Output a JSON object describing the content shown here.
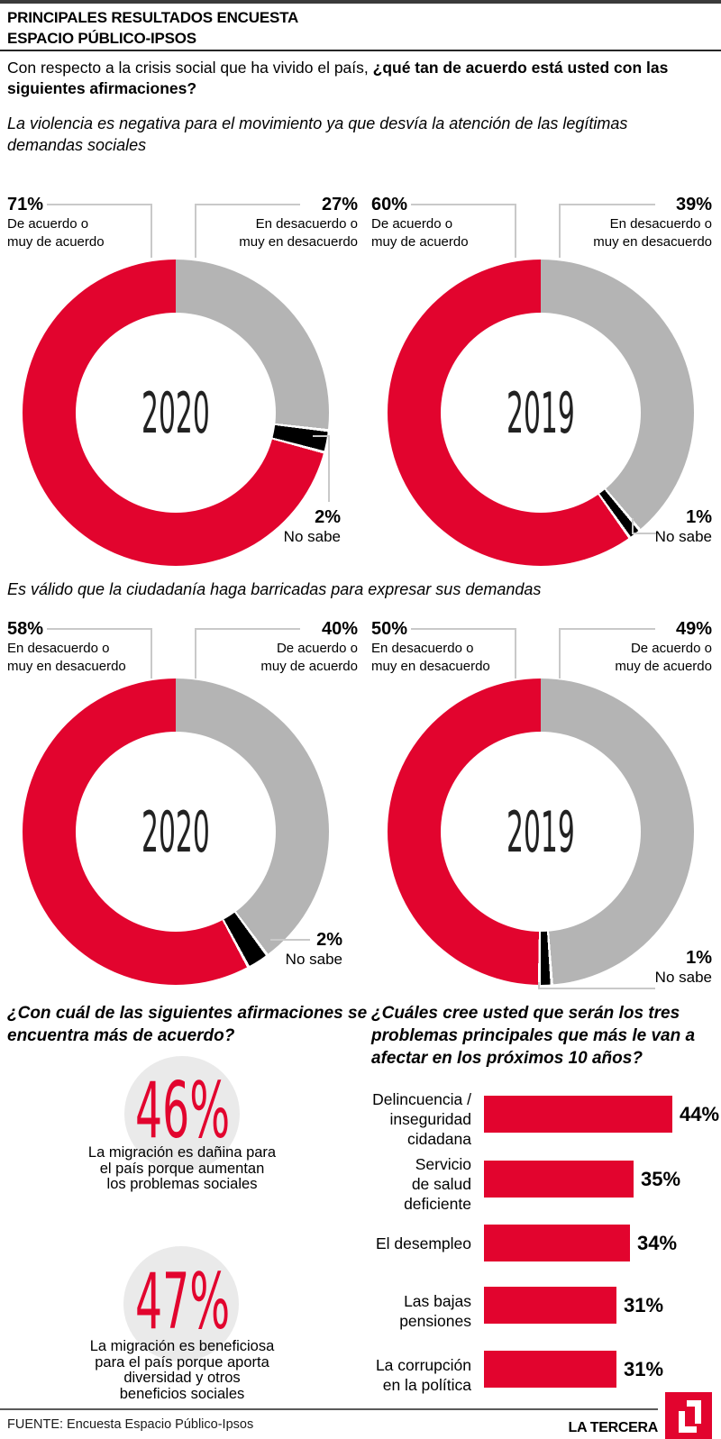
{
  "header": {
    "kicker_line1": "PRINCIPALES RESULTADOS ENCUESTA",
    "kicker_line2": "ESPACIO PÚBLICO-IPSOS",
    "intro_regular": "Con respecto a la crisis social que ha vivido el país, ",
    "intro_bold": "¿qué tan de acuerdo está usted con las siguientes afirmaciones?"
  },
  "colors": {
    "red": "#e2042e",
    "gray": "#b4b4b4",
    "black": "#000000",
    "circle_bg": "#eaeaea",
    "connector": "#c9c9c9"
  },
  "chart_data": [
    {
      "type": "pie",
      "variant": "donut",
      "question": "La violencia es negativa para el movimiento ya que desvía la atención de las legítimas\ndemandas sociales",
      "donuts": [
        {
          "year": "2020",
          "slices": [
            {
              "label": "En desacuerdo o\nmuy en desacuerdo",
              "value": 27,
              "value_label": "27%",
              "color": "#b4b4b4"
            },
            {
              "label": "No sabe",
              "value": 2,
              "value_label": "2%",
              "color": "#000000"
            },
            {
              "label": "De acuerdo o\nmuy de acuerdo",
              "value": 71,
              "value_label": "71%",
              "color": "#e2042e"
            }
          ]
        },
        {
          "year": "2019",
          "slices": [
            {
              "label": "En desacuerdo o\nmuy en desacuerdo",
              "value": 39,
              "value_label": "39%",
              "color": "#b4b4b4"
            },
            {
              "label": "No sabe",
              "value": 1,
              "value_label": "1%",
              "color": "#000000"
            },
            {
              "label": "De acuerdo o\nmuy de acuerdo",
              "value": 60,
              "value_label": "60%",
              "color": "#e2042e"
            }
          ]
        }
      ]
    },
    {
      "type": "pie",
      "variant": "donut",
      "question": "Es válido que la ciudadanía haga barricadas para expresar sus demandas",
      "donuts": [
        {
          "year": "2020",
          "slices": [
            {
              "label": "De acuerdo o\nmuy de acuerdo",
              "value": 40,
              "value_label": "40%",
              "color": "#b4b4b4"
            },
            {
              "label": "No sabe",
              "value": 2,
              "value_label": "2%",
              "color": "#000000"
            },
            {
              "label": "En desacuerdo o\nmuy en desacuerdo",
              "value": 58,
              "value_label": "58%",
              "color": "#e2042e"
            }
          ]
        },
        {
          "year": "2019",
          "slices": [
            {
              "label": "De acuerdo o\nmuy de acuerdo",
              "value": 49,
              "value_label": "49%",
              "color": "#b4b4b4"
            },
            {
              "label": "No sabe",
              "value": 1,
              "value_label": "1%",
              "color": "#000000"
            },
            {
              "label": "En desacuerdo o\nmuy en desacuerdo",
              "value": 50,
              "value_label": "50%",
              "color": "#e2042e"
            }
          ]
        }
      ]
    },
    {
      "type": "big-number",
      "question": "¿Con cuál de las siguientes afirmaciones se\nencuentra más de acuerdo?",
      "items": [
        {
          "value": 46,
          "value_label": "46%",
          "label": "La migración es dañina para\nel país porque aumentan\nlos problemas sociales"
        },
        {
          "value": 47,
          "value_label": "47%",
          "label": "La migración es beneficiosa\npara el país porque aporta\ndiversidad y otros\nbeneficios sociales"
        }
      ]
    },
    {
      "type": "bar",
      "question": "¿Cuáles cree usted que serán los tres\nproblemas principales que más le van a\nafectar en los próximos 10 años?",
      "categories": [
        "Delincuencia /\ninseguridad\ncidadana",
        "Servicio\nde salud\ndeficiente",
        "El desempleo",
        "Las bajas\npensiones",
        "La corrupción\nen la política"
      ],
      "values": [
        44,
        35,
        34,
        31,
        31
      ],
      "value_labels": [
        "44%",
        "35%",
        "34%",
        "31%",
        "31%"
      ],
      "bar_color": "#e2042e",
      "xlim": [
        0,
        50
      ]
    }
  ],
  "footer": {
    "source": "FUENTE: Encuesta Espacio Público-Ipsos",
    "brand": "LA TERCERA",
    "logo": "LT"
  }
}
